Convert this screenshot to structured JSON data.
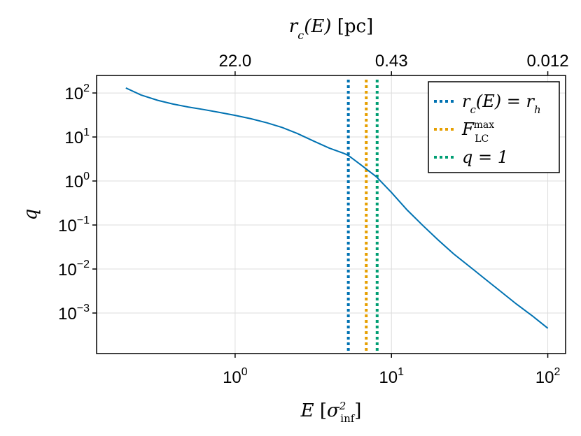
{
  "chart_data": {
    "type": "line",
    "xscale": "log",
    "yscale": "log",
    "xlim": [
      0.13,
      130
    ],
    "ylim": [
      0.00012,
      250
    ],
    "xlabel": "E [σ²_inf]",
    "ylabel": "q",
    "top_axis_label": "r_c(E) [pc]",
    "x_ticks": [
      {
        "value": 1,
        "base": "10",
        "exp": "0"
      },
      {
        "value": 10,
        "base": "10",
        "exp": "1"
      },
      {
        "value": 100,
        "base": "10",
        "exp": "2"
      }
    ],
    "y_ticks": [
      {
        "value": 100,
        "base": "10",
        "exp": "2"
      },
      {
        "value": 10,
        "base": "10",
        "exp": "1"
      },
      {
        "value": 1,
        "base": "10",
        "exp": "0"
      },
      {
        "value": 0.1,
        "base": "10",
        "exp": "−1"
      },
      {
        "value": 0.01,
        "base": "10",
        "exp": "−2"
      },
      {
        "value": 0.001,
        "base": "10",
        "exp": "−3"
      }
    ],
    "top_ticks": [
      {
        "value": 1,
        "label": "22.0"
      },
      {
        "value": 10,
        "label": "0.43"
      },
      {
        "value": 100,
        "label": "0.012"
      }
    ],
    "grid": true,
    "legend_position": "top-right",
    "series": [
      {
        "color": "#0072B2",
        "x": [
          0.2,
          0.25,
          0.32,
          0.4,
          0.5,
          0.63,
          0.8,
          1.0,
          1.26,
          1.6,
          2.0,
          2.5,
          3.2,
          4.0,
          5.0,
          5.3,
          6.3,
          8.0,
          10.0,
          12.6,
          16.0,
          20.0,
          25.0,
          32.0,
          40.0,
          50.0,
          63.0,
          80.0,
          100.0
        ],
        "y": [
          130,
          90,
          68,
          56,
          48,
          42,
          36,
          31,
          26,
          21,
          16.5,
          12,
          8,
          5.6,
          4.2,
          3.8,
          2.4,
          1.25,
          0.55,
          0.22,
          0.095,
          0.045,
          0.022,
          0.011,
          0.0058,
          0.0031,
          0.0016,
          0.00085,
          0.00045
        ]
      }
    ],
    "vlines": [
      {
        "x": 5.3,
        "color": "#0072B2"
      },
      {
        "x": 6.9,
        "color": "#E69F00"
      },
      {
        "x": 8.1,
        "color": "#009E73"
      }
    ],
    "legend": [
      {
        "color": "#0072B2",
        "label_html": "r<tspan baseline-shift=\"sub\" font-size=\"15\">c</tspan>(E) = r<tspan baseline-shift=\"sub\" font-size=\"15\">h</tspan>"
      },
      {
        "color": "#E69F00",
        "label_html": "F"
      },
      {
        "color": "#009E73",
        "label_html": "q = 1"
      }
    ],
    "legend_extra": {
      "sup": "max",
      "sub": "LC"
    }
  }
}
